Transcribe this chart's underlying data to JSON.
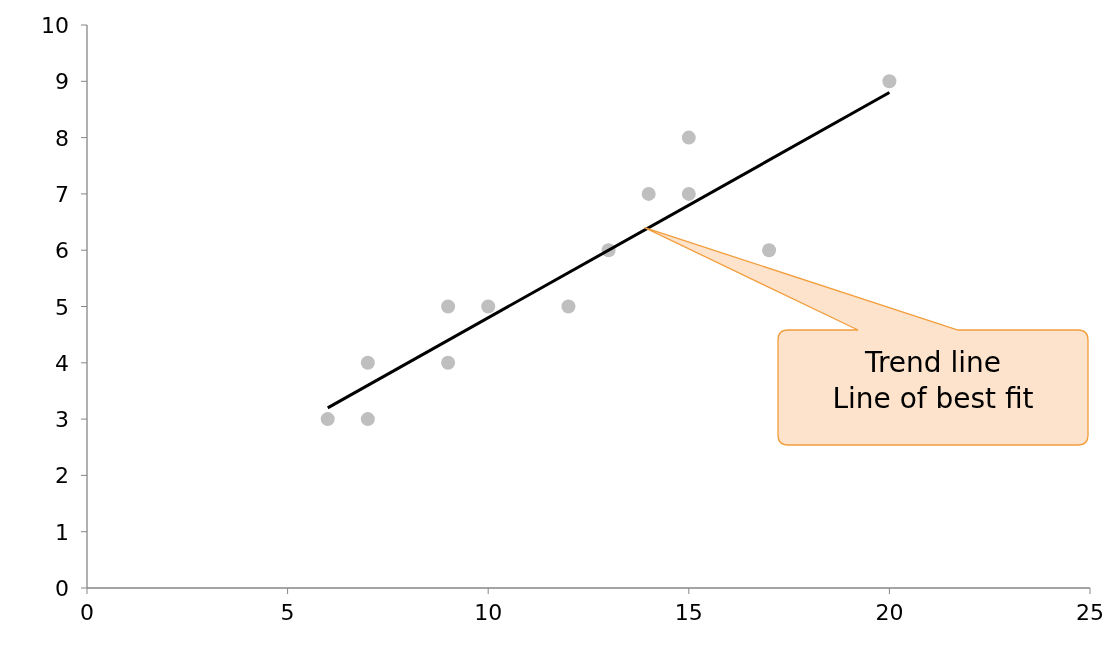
{
  "chart_data": {
    "type": "scatter",
    "xlim": [
      0,
      25
    ],
    "xticks": [
      0,
      5,
      10,
      15,
      20,
      25
    ],
    "ylim": [
      0,
      10
    ],
    "yticks": [
      0,
      1,
      2,
      3,
      4,
      5,
      6,
      7,
      8,
      9,
      10
    ],
    "grid": false,
    "marker": "circle",
    "series": [
      {
        "color": "#bfbfbf",
        "x": [
          6,
          7,
          7,
          9,
          9,
          10,
          12,
          13,
          14,
          15,
          15,
          17,
          20
        ],
        "values": [
          3,
          4,
          3,
          5,
          4,
          5,
          5,
          6,
          7,
          8,
          7,
          6,
          9
        ]
      },
      {
        "type": "line",
        "color": "#000000",
        "marker": "none",
        "x": [
          6,
          20
        ],
        "values": [
          3.2,
          8.8
        ]
      }
    ],
    "annotations": [
      "Trend line\nLine of best fit"
    ]
  }
}
